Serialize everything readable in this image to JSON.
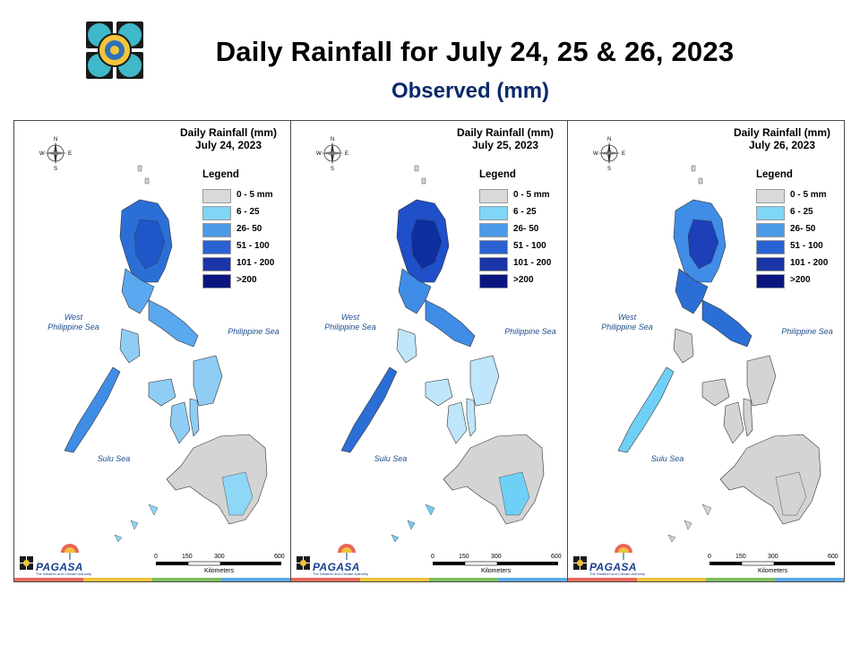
{
  "header": {
    "title": "Daily Rainfall for July 24, 25 & 26, 2023",
    "subtitle": "Observed (mm)"
  },
  "panels": [
    {
      "title": "Daily Rainfall (mm)",
      "date": "July 24, 2023",
      "fills": {
        "north": "#2b6fd6",
        "ncore": "#1f57c8",
        "south": "#5aa8ef",
        "visayas": "#8fcdf5",
        "mindanao": "#d4d4d4",
        "palawan": "#3f8de6",
        "mindanao_e": "#8fd7f7"
      }
    },
    {
      "title": "Daily Rainfall (mm)",
      "date": "July 25, 2023",
      "fills": {
        "north": "#1f4fc9",
        "ncore": "#0d2f9f",
        "south": "#3f8de6",
        "visayas": "#bfe6fa",
        "mindanao": "#d4d4d4",
        "palawan": "#2b6fd6",
        "mindanao_e": "#6fd0f7"
      }
    },
    {
      "title": "Daily Rainfall (mm)",
      "date": "July 26, 2023",
      "fills": {
        "north": "#3f8de6",
        "ncore": "#1d3fb8",
        "south": "#2b6fd6",
        "visayas": "#d4d4d4",
        "mindanao": "#d4d4d4",
        "palawan": "#6fd0f7",
        "mindanao_e": "#d4d4d4"
      }
    }
  ],
  "legend": {
    "title": "Legend",
    "items": [
      {
        "label": "0 - 5 mm",
        "color": "#d9d9d9"
      },
      {
        "label": "6 - 25",
        "color": "#7fd6f7"
      },
      {
        "label": "26- 50",
        "color": "#4a9ae8"
      },
      {
        "label": "51 - 100",
        "color": "#2a62d4"
      },
      {
        "label": "101 - 200",
        "color": "#1a35a8"
      },
      {
        "label": ">200",
        "color": "#0a1580"
      }
    ]
  },
  "labels": {
    "west_sea": "West\nPhilippine Sea",
    "east_sea": "Philippine Sea",
    "sulu_sea": "Sulu Sea",
    "scale_ticks": [
      "0",
      "150",
      "300",
      "600"
    ],
    "scale_unit": "Kilometers",
    "agency": "PAGASA",
    "agency_tag": "The Weather and Climate Authority",
    "compass": {
      "n": "N",
      "e": "E",
      "s": "S",
      "w": "W"
    }
  },
  "footer_colors": [
    "#e8675a",
    "#f1c33b",
    "#7fbe5e",
    "#5aa9e6"
  ]
}
